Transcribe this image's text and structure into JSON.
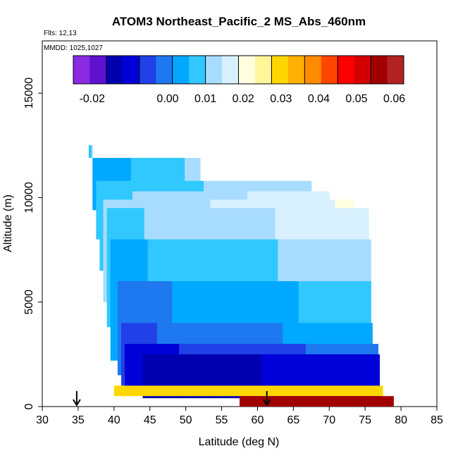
{
  "chart_data": {
    "type": "heatmap",
    "title": "ATOM3 Northeast_Pacific_2 MS_Abs_460nm",
    "flights_note": "Flts: 12,13",
    "mmdd_note": "MMDD: 1025,1027",
    "xlabel": "Latitude (deg N)",
    "ylabel": "Altitude (m)",
    "xlim": [
      30,
      85
    ],
    "ylim": [
      0,
      17500
    ],
    "x_ticks": [
      "30",
      "35",
      "40",
      "45",
      "50",
      "55",
      "60",
      "65",
      "70",
      "75",
      "80",
      "85"
    ],
    "y_ticks": [
      "0",
      "5000",
      "10000",
      "15000"
    ],
    "colorbar": {
      "range": [
        -0.025,
        0.0625
      ],
      "tick_labels": [
        "-0.02",
        "0.00",
        "0.01",
        "0.02",
        "0.03",
        "0.04",
        "0.05",
        "0.06"
      ],
      "tick_values": [
        -0.02,
        0.0,
        0.01,
        0.02,
        0.03,
        0.04,
        0.05,
        0.06
      ],
      "colors": [
        "#8a2be2",
        "#6010d0",
        "#0000b0",
        "#0000d8",
        "#2040e8",
        "#1e78f0",
        "#00a8ff",
        "#30c8ff",
        "#a8dcff",
        "#d8f0ff",
        "#ffffe0",
        "#fff59a",
        "#ffd700",
        "#ffb000",
        "#ff8c00",
        "#ff4500",
        "#ff0000",
        "#d40000",
        "#a00000",
        "#b22222"
      ]
    },
    "arrows_latitude": [
      34.8,
      61.3
    ],
    "profiles": [
      {
        "alt_range_m": [
          11900,
          12500
        ],
        "lat_range": [
          36.5,
          37.0
        ],
        "value": 0.008
      },
      {
        "alt_range_m": [
          9400,
          11900
        ],
        "lat_range": [
          37.0,
          52.0
        ],
        "value": 0.007
      },
      {
        "alt_range_m": [
          8000,
          10800
        ],
        "lat_range": [
          37.5,
          67.5
        ],
        "value": 0.01
      },
      {
        "alt_range_m": [
          6500,
          10300
        ],
        "lat_range": [
          38.0,
          70.0
        ],
        "value": 0.013
      },
      {
        "alt_range_m": [
          5000,
          9900
        ],
        "lat_range": [
          38.5,
          73.3
        ],
        "value": 0.015
      },
      {
        "alt_range_m": [
          3800,
          9500
        ],
        "lat_range": [
          39.0,
          75.5
        ],
        "value": 0.013
      },
      {
        "alt_range_m": [
          2200,
          8000
        ],
        "lat_range": [
          39.5,
          75.8
        ],
        "value": 0.009
      },
      {
        "alt_range_m": [
          1500,
          6000
        ],
        "lat_range": [
          40.5,
          75.8
        ],
        "value": 0.004
      },
      {
        "alt_range_m": [
          1000,
          4000
        ],
        "lat_range": [
          41.0,
          76.0
        ],
        "value": 0.0
      },
      {
        "alt_range_m": [
          700,
          3000
        ],
        "lat_range": [
          41.5,
          76.8
        ],
        "value": -0.005
      },
      {
        "alt_range_m": [
          400,
          2500
        ],
        "lat_range": [
          44.0,
          77.0
        ],
        "value": -0.012
      }
    ],
    "surface_band": {
      "alt_range_m": [
        0,
        500
      ],
      "lat_range": [
        57.5,
        79.0
      ],
      "value": 0.055
    },
    "low_band": {
      "alt_range_m": [
        500,
        1000
      ],
      "lat_range": [
        40.0,
        77.5
      ],
      "value": 0.028
    }
  }
}
